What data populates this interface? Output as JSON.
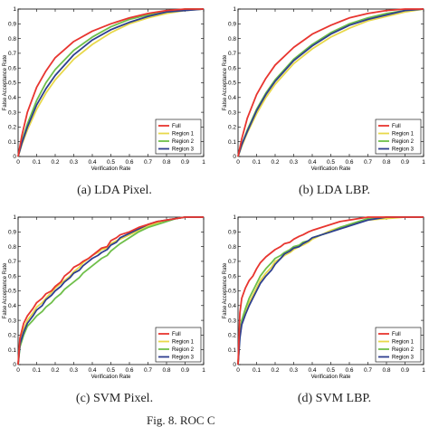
{
  "figure_caption": "Fig. 8. ROC C",
  "colors": {
    "Full": "#e8352f",
    "Region 1": "#e8d84a",
    "Region 2": "#6fbf4a",
    "Region 3": "#2e3f8f"
  },
  "chart_data": [
    {
      "type": "line",
      "caption": "(a) LDA Pixel.",
      "xlabel": "Verification Rate",
      "ylabel": "False Acceptance Rate",
      "xlim": [
        0,
        1
      ],
      "ylim": [
        0,
        1
      ],
      "xticks": [
        "0",
        "0.1",
        "0.2",
        "0.3",
        "0.4",
        "0.5",
        "0.6",
        "0.7",
        "0.8",
        "0.9",
        "1"
      ],
      "yticks": [
        "0",
        "0.1",
        "0.2",
        "0.3",
        "0.4",
        "0.5",
        "0.6",
        "0.7",
        "0.8",
        "0.9",
        "1"
      ],
      "legend_position": "bottom-right",
      "series": [
        {
          "name": "Full",
          "x": [
            0,
            0.02,
            0.05,
            0.1,
            0.15,
            0.2,
            0.3,
            0.4,
            0.5,
            0.6,
            0.7,
            0.8,
            0.9,
            1.0
          ],
          "y": [
            0,
            0.14,
            0.3,
            0.47,
            0.58,
            0.67,
            0.78,
            0.85,
            0.9,
            0.94,
            0.97,
            0.99,
            1.0,
            1.0
          ]
        },
        {
          "name": "Region 1",
          "x": [
            0,
            0.02,
            0.05,
            0.1,
            0.15,
            0.2,
            0.3,
            0.4,
            0.5,
            0.6,
            0.7,
            0.8,
            0.9,
            1.0
          ],
          "y": [
            0,
            0.08,
            0.18,
            0.32,
            0.43,
            0.52,
            0.66,
            0.76,
            0.84,
            0.9,
            0.94,
            0.97,
            0.99,
            1.0
          ]
        },
        {
          "name": "Region 2",
          "x": [
            0,
            0.02,
            0.05,
            0.1,
            0.15,
            0.2,
            0.3,
            0.4,
            0.5,
            0.6,
            0.7,
            0.8,
            0.9,
            1.0
          ],
          "y": [
            0,
            0.1,
            0.22,
            0.38,
            0.5,
            0.59,
            0.72,
            0.81,
            0.88,
            0.93,
            0.96,
            0.98,
            1.0,
            1.0
          ]
        },
        {
          "name": "Region 3",
          "x": [
            0,
            0.02,
            0.05,
            0.1,
            0.15,
            0.2,
            0.3,
            0.4,
            0.5,
            0.6,
            0.7,
            0.8,
            0.9,
            1.0
          ],
          "y": [
            0,
            0.09,
            0.2,
            0.35,
            0.46,
            0.55,
            0.69,
            0.79,
            0.86,
            0.91,
            0.95,
            0.98,
            0.99,
            1.0
          ]
        }
      ]
    },
    {
      "type": "line",
      "caption": "(b) LDA LBP.",
      "xlabel": "Verification Rate",
      "ylabel": "False Acceptance Rate",
      "xlim": [
        0,
        1
      ],
      "ylim": [
        0,
        1
      ],
      "xticks": [
        "0",
        "0.1",
        "0.2",
        "0.3",
        "0.4",
        "0.5",
        "0.6",
        "0.7",
        "0.8",
        "0.9",
        "1"
      ],
      "yticks": [
        "0",
        "0.1",
        "0.2",
        "0.3",
        "0.4",
        "0.5",
        "0.6",
        "0.7",
        "0.8",
        "0.9",
        "1"
      ],
      "legend_position": "bottom-right",
      "series": [
        {
          "name": "Full",
          "x": [
            0,
            0.02,
            0.05,
            0.1,
            0.15,
            0.2,
            0.3,
            0.4,
            0.5,
            0.6,
            0.7,
            0.8,
            0.9,
            1.0
          ],
          "y": [
            0,
            0.12,
            0.26,
            0.42,
            0.53,
            0.62,
            0.74,
            0.83,
            0.89,
            0.94,
            0.97,
            0.99,
            1.0,
            1.0
          ]
        },
        {
          "name": "Region 1",
          "x": [
            0,
            0.02,
            0.05,
            0.1,
            0.15,
            0.2,
            0.3,
            0.4,
            0.5,
            0.6,
            0.7,
            0.8,
            0.9,
            1.0
          ],
          "y": [
            0,
            0.07,
            0.16,
            0.29,
            0.4,
            0.49,
            0.63,
            0.73,
            0.81,
            0.87,
            0.92,
            0.95,
            0.98,
            1.0
          ]
        },
        {
          "name": "Region 2",
          "x": [
            0,
            0.02,
            0.05,
            0.1,
            0.15,
            0.2,
            0.3,
            0.4,
            0.5,
            0.6,
            0.7,
            0.8,
            0.9,
            1.0
          ],
          "y": [
            0,
            0.08,
            0.18,
            0.32,
            0.43,
            0.52,
            0.66,
            0.76,
            0.84,
            0.9,
            0.94,
            0.97,
            0.99,
            1.0
          ]
        },
        {
          "name": "Region 3",
          "x": [
            0,
            0.02,
            0.05,
            0.1,
            0.15,
            0.2,
            0.3,
            0.4,
            0.5,
            0.6,
            0.7,
            0.8,
            0.9,
            1.0
          ],
          "y": [
            0,
            0.08,
            0.17,
            0.31,
            0.42,
            0.51,
            0.65,
            0.75,
            0.83,
            0.89,
            0.93,
            0.96,
            0.99,
            1.0
          ]
        }
      ]
    },
    {
      "type": "line",
      "caption": "(c) SVM Pixel.",
      "xlabel": "Verification Rate",
      "ylabel": "False Acceptance Rate",
      "xlim": [
        0,
        1
      ],
      "ylim": [
        0,
        1
      ],
      "xticks": [
        "0",
        "0.1",
        "0.2",
        "0.3",
        "0.4",
        "0.5",
        "0.6",
        "0.7",
        "0.8",
        "0.9",
        "1"
      ],
      "yticks": [
        "0",
        "0.1",
        "0.2",
        "0.3",
        "0.4",
        "0.5",
        "0.6",
        "0.7",
        "0.8",
        "0.9",
        "1"
      ],
      "legend_position": "bottom-right",
      "series": [
        {
          "name": "Full",
          "x": [
            0,
            0.01,
            0.03,
            0.05,
            0.08,
            0.1,
            0.13,
            0.15,
            0.18,
            0.2,
            0.23,
            0.25,
            0.28,
            0.3,
            0.33,
            0.35,
            0.38,
            0.4,
            0.43,
            0.45,
            0.48,
            0.5,
            0.53,
            0.55,
            0.6,
            0.65,
            0.7,
            0.75,
            0.8,
            0.85,
            0.9,
            1.0
          ],
          "y": [
            0,
            0.18,
            0.28,
            0.33,
            0.38,
            0.42,
            0.45,
            0.48,
            0.5,
            0.53,
            0.56,
            0.6,
            0.63,
            0.66,
            0.68,
            0.7,
            0.72,
            0.74,
            0.77,
            0.79,
            0.8,
            0.84,
            0.86,
            0.88,
            0.9,
            0.93,
            0.95,
            0.97,
            0.98,
            0.99,
            1.0,
            1.0
          ]
        },
        {
          "name": "Region 1",
          "x": [
            0,
            0.01,
            0.03,
            0.05,
            0.08,
            0.1,
            0.13,
            0.15,
            0.18,
            0.2,
            0.23,
            0.25,
            0.28,
            0.3,
            0.33,
            0.35,
            0.38,
            0.4,
            0.43,
            0.45,
            0.48,
            0.5,
            0.53,
            0.55,
            0.6,
            0.65,
            0.7,
            0.75,
            0.8,
            0.85,
            0.9,
            1.0
          ],
          "y": [
            0,
            0.16,
            0.24,
            0.3,
            0.35,
            0.39,
            0.42,
            0.45,
            0.49,
            0.52,
            0.55,
            0.57,
            0.6,
            0.63,
            0.66,
            0.69,
            0.72,
            0.74,
            0.76,
            0.78,
            0.79,
            0.82,
            0.84,
            0.85,
            0.88,
            0.91,
            0.94,
            0.96,
            0.98,
            0.99,
            1.0,
            1.0
          ]
        },
        {
          "name": "Region 2",
          "x": [
            0,
            0.01,
            0.03,
            0.05,
            0.08,
            0.1,
            0.13,
            0.15,
            0.18,
            0.2,
            0.23,
            0.25,
            0.28,
            0.3,
            0.33,
            0.35,
            0.38,
            0.4,
            0.43,
            0.45,
            0.48,
            0.5,
            0.53,
            0.55,
            0.6,
            0.65,
            0.7,
            0.75,
            0.8,
            0.85,
            0.9,
            1.0
          ],
          "y": [
            0,
            0.12,
            0.2,
            0.26,
            0.3,
            0.33,
            0.36,
            0.39,
            0.42,
            0.45,
            0.48,
            0.51,
            0.54,
            0.56,
            0.59,
            0.62,
            0.65,
            0.67,
            0.7,
            0.72,
            0.74,
            0.77,
            0.8,
            0.82,
            0.86,
            0.9,
            0.93,
            0.95,
            0.97,
            0.99,
            1.0,
            1.0
          ]
        },
        {
          "name": "Region 3",
          "x": [
            0,
            0.01,
            0.03,
            0.05,
            0.08,
            0.1,
            0.13,
            0.15,
            0.18,
            0.2,
            0.23,
            0.25,
            0.28,
            0.3,
            0.33,
            0.35,
            0.38,
            0.4,
            0.43,
            0.45,
            0.48,
            0.5,
            0.53,
            0.55,
            0.6,
            0.65,
            0.7,
            0.75,
            0.8,
            0.85,
            0.9,
            1.0
          ],
          "y": [
            0,
            0.14,
            0.22,
            0.28,
            0.33,
            0.37,
            0.4,
            0.44,
            0.47,
            0.5,
            0.53,
            0.56,
            0.59,
            0.62,
            0.64,
            0.67,
            0.7,
            0.72,
            0.74,
            0.76,
            0.78,
            0.81,
            0.83,
            0.86,
            0.89,
            0.92,
            0.95,
            0.97,
            0.98,
            0.99,
            1.0,
            1.0
          ]
        }
      ]
    },
    {
      "type": "line",
      "caption": "(d) SVM LBP.",
      "xlabel": "Verification Rate",
      "ylabel": "False Acceptance Rate",
      "xlim": [
        0,
        1
      ],
      "ylim": [
        0,
        1
      ],
      "xticks": [
        "0",
        "0.1",
        "0.2",
        "0.3",
        "0.4",
        "0.5",
        "0.6",
        "0.7",
        "0.8",
        "0.9",
        "1"
      ],
      "yticks": [
        "0",
        "0.1",
        "0.2",
        "0.3",
        "0.4",
        "0.5",
        "0.6",
        "0.7",
        "0.8",
        "0.9",
        "1"
      ],
      "legend_position": "bottom-right",
      "series": [
        {
          "name": "Full",
          "x": [
            0,
            0.01,
            0.02,
            0.04,
            0.06,
            0.08,
            0.1,
            0.12,
            0.15,
            0.18,
            0.2,
            0.23,
            0.25,
            0.28,
            0.3,
            0.33,
            0.35,
            0.38,
            0.4,
            0.45,
            0.5,
            0.55,
            0.6,
            0.65,
            0.7,
            0.8,
            0.9,
            1.0
          ],
          "y": [
            0,
            0.35,
            0.45,
            0.52,
            0.57,
            0.6,
            0.65,
            0.69,
            0.73,
            0.76,
            0.78,
            0.8,
            0.82,
            0.83,
            0.85,
            0.87,
            0.88,
            0.9,
            0.91,
            0.93,
            0.95,
            0.97,
            0.98,
            0.99,
            1.0,
            1.0,
            1.0,
            1.0
          ]
        },
        {
          "name": "Region 1",
          "x": [
            0,
            0.01,
            0.02,
            0.04,
            0.06,
            0.08,
            0.1,
            0.12,
            0.15,
            0.18,
            0.2,
            0.23,
            0.25,
            0.28,
            0.3,
            0.33,
            0.35,
            0.38,
            0.4,
            0.45,
            0.5,
            0.55,
            0.6,
            0.65,
            0.7,
            0.8,
            0.9,
            1.0
          ],
          "y": [
            0,
            0.2,
            0.28,
            0.36,
            0.42,
            0.47,
            0.52,
            0.57,
            0.62,
            0.66,
            0.7,
            0.72,
            0.74,
            0.76,
            0.78,
            0.8,
            0.81,
            0.83,
            0.85,
            0.88,
            0.91,
            0.93,
            0.95,
            0.97,
            0.98,
            0.99,
            1.0,
            1.0
          ]
        },
        {
          "name": "Region 2",
          "x": [
            0,
            0.01,
            0.02,
            0.04,
            0.06,
            0.08,
            0.1,
            0.12,
            0.15,
            0.18,
            0.2,
            0.23,
            0.25,
            0.28,
            0.3,
            0.33,
            0.35,
            0.38,
            0.4,
            0.45,
            0.5,
            0.55,
            0.6,
            0.65,
            0.7,
            0.8,
            0.9,
            1.0
          ],
          "y": [
            0,
            0.22,
            0.3,
            0.38,
            0.45,
            0.5,
            0.55,
            0.6,
            0.65,
            0.69,
            0.72,
            0.74,
            0.76,
            0.78,
            0.8,
            0.81,
            0.83,
            0.84,
            0.86,
            0.88,
            0.9,
            0.93,
            0.95,
            0.97,
            0.99,
            1.0,
            1.0,
            1.0
          ]
        },
        {
          "name": "Region 3",
          "x": [
            0,
            0.01,
            0.02,
            0.04,
            0.06,
            0.08,
            0.1,
            0.12,
            0.15,
            0.18,
            0.2,
            0.23,
            0.25,
            0.28,
            0.3,
            0.33,
            0.35,
            0.38,
            0.4,
            0.45,
            0.5,
            0.55,
            0.6,
            0.65,
            0.7,
            0.8,
            0.9,
            1.0
          ],
          "y": [
            0,
            0.18,
            0.27,
            0.34,
            0.4,
            0.45,
            0.5,
            0.55,
            0.6,
            0.64,
            0.68,
            0.72,
            0.75,
            0.77,
            0.79,
            0.8,
            0.82,
            0.84,
            0.86,
            0.88,
            0.9,
            0.92,
            0.94,
            0.96,
            0.98,
            1.0,
            1.0,
            1.0
          ]
        }
      ]
    }
  ]
}
